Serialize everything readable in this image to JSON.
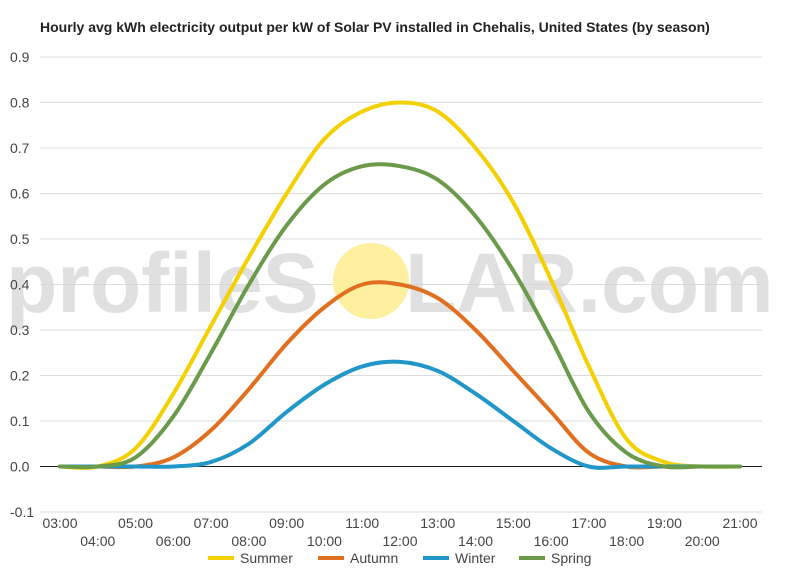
{
  "chart_data": {
    "type": "line",
    "title": "Hourly avg kWh electricity output per kW of Solar PV installed in Chehalis, United States (by season)",
    "xlabel": "",
    "ylabel": "",
    "x": [
      "03:00",
      "04:00",
      "05:00",
      "06:00",
      "07:00",
      "08:00",
      "09:00",
      "10:00",
      "11:00",
      "12:00",
      "13:00",
      "14:00",
      "15:00",
      "16:00",
      "17:00",
      "18:00",
      "19:00",
      "20:00",
      "21:00"
    ],
    "ylim": [
      -0.1,
      0.9
    ],
    "yticks": [
      "-0.1",
      "0.0",
      "0.1",
      "0.2",
      "0.3",
      "0.4",
      "0.5",
      "0.6",
      "0.7",
      "0.8",
      "0.9"
    ],
    "grid": true,
    "legend_position": "bottom",
    "series": [
      {
        "name": "Summer",
        "color": "#f5d000",
        "values": [
          0.0,
          0.0,
          0.04,
          0.16,
          0.31,
          0.46,
          0.6,
          0.72,
          0.78,
          0.8,
          0.78,
          0.7,
          0.58,
          0.41,
          0.22,
          0.06,
          0.01,
          0.0,
          0.0
        ]
      },
      {
        "name": "Autumn",
        "color": "#e07020",
        "values": [
          0.0,
          0.0,
          0.0,
          0.02,
          0.08,
          0.17,
          0.27,
          0.35,
          0.4,
          0.4,
          0.37,
          0.3,
          0.21,
          0.12,
          0.03,
          0.0,
          0.0,
          0.0,
          0.0
        ]
      },
      {
        "name": "Winter",
        "color": "#2196c8",
        "values": [
          0.0,
          0.0,
          0.0,
          0.0,
          0.01,
          0.05,
          0.12,
          0.18,
          0.22,
          0.23,
          0.21,
          0.16,
          0.1,
          0.04,
          0.0,
          0.0,
          0.0,
          0.0,
          0.0
        ]
      },
      {
        "name": "Spring",
        "color": "#6a9a4a",
        "values": [
          0.0,
          0.0,
          0.02,
          0.11,
          0.25,
          0.4,
          0.53,
          0.62,
          0.66,
          0.66,
          0.63,
          0.55,
          0.43,
          0.28,
          0.12,
          0.03,
          0.0,
          0.0,
          0.0
        ]
      }
    ]
  },
  "watermark": {
    "left": "profileS",
    "right": "LAR.com",
    "sun_color": "#fff0a0"
  }
}
